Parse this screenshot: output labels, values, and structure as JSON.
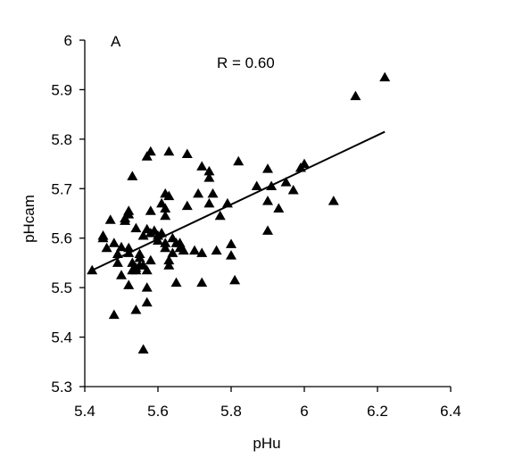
{
  "chart_data": {
    "type": "scatter",
    "panel_label": "A",
    "annotation": "R = 0.60",
    "xlabel": "pHu",
    "ylabel": "pHcam",
    "xlim": [
      5.4,
      6.4
    ],
    "ylim": [
      5.3,
      6.0
    ],
    "xticks": [
      "5.4",
      "5.6",
      "5.8",
      "6",
      "6.2",
      "6.4"
    ],
    "yticks": [
      "5.3",
      "5.4",
      "5.5",
      "5.6",
      "5.7",
      "5.8",
      "5.9",
      "6"
    ],
    "grid": false,
    "legend": "none",
    "marker": "triangle",
    "marker_color": "#000000",
    "trendline": {
      "x": [
        5.42,
        6.22
      ],
      "y": [
        5.535,
        5.815
      ]
    },
    "points": [
      [
        5.42,
        5.535
      ],
      [
        5.45,
        5.605
      ],
      [
        5.45,
        5.6
      ],
      [
        5.46,
        5.58
      ],
      [
        5.47,
        5.637
      ],
      [
        5.48,
        5.445
      ],
      [
        5.48,
        5.59
      ],
      [
        5.49,
        5.568
      ],
      [
        5.49,
        5.55
      ],
      [
        5.5,
        5.525
      ],
      [
        5.5,
        5.582
      ],
      [
        5.51,
        5.64
      ],
      [
        5.51,
        5.635
      ],
      [
        5.52,
        5.655
      ],
      [
        5.52,
        5.648
      ],
      [
        5.52,
        5.58
      ],
      [
        5.52,
        5.505
      ],
      [
        5.52,
        5.57
      ],
      [
        5.53,
        5.55
      ],
      [
        5.53,
        5.535
      ],
      [
        5.53,
        5.725
      ],
      [
        5.54,
        5.455
      ],
      [
        5.54,
        5.54
      ],
      [
        5.54,
        5.535
      ],
      [
        5.54,
        5.62
      ],
      [
        5.55,
        5.568
      ],
      [
        5.55,
        5.56
      ],
      [
        5.55,
        5.545
      ],
      [
        5.56,
        5.545
      ],
      [
        5.56,
        5.375
      ],
      [
        5.56,
        5.605
      ],
      [
        5.57,
        5.765
      ],
      [
        5.57,
        5.618
      ],
      [
        5.57,
        5.535
      ],
      [
        5.57,
        5.5
      ],
      [
        5.57,
        5.47
      ],
      [
        5.58,
        5.775
      ],
      [
        5.58,
        5.655
      ],
      [
        5.58,
        5.61
      ],
      [
        5.58,
        5.555
      ],
      [
        5.59,
        5.615
      ],
      [
        5.6,
        5.605
      ],
      [
        5.6,
        5.595
      ],
      [
        5.61,
        5.67
      ],
      [
        5.61,
        5.61
      ],
      [
        5.62,
        5.69
      ],
      [
        5.62,
        5.66
      ],
      [
        5.62,
        5.645
      ],
      [
        5.62,
        5.59
      ],
      [
        5.62,
        5.58
      ],
      [
        5.63,
        5.685
      ],
      [
        5.63,
        5.555
      ],
      [
        5.63,
        5.545
      ],
      [
        5.64,
        5.6
      ],
      [
        5.64,
        5.57
      ],
      [
        5.65,
        5.59
      ],
      [
        5.65,
        5.51
      ],
      [
        5.66,
        5.59
      ],
      [
        5.66,
        5.58
      ],
      [
        5.67,
        5.575
      ],
      [
        5.63,
        5.775
      ],
      [
        5.68,
        5.77
      ],
      [
        5.68,
        5.665
      ],
      [
        5.7,
        5.575
      ],
      [
        5.71,
        5.69
      ],
      [
        5.72,
        5.745
      ],
      [
        5.72,
        5.57
      ],
      [
        5.72,
        5.51
      ],
      [
        5.74,
        5.735
      ],
      [
        5.74,
        5.722
      ],
      [
        5.74,
        5.67
      ],
      [
        5.75,
        5.69
      ],
      [
        5.76,
        5.575
      ],
      [
        5.77,
        5.645
      ],
      [
        5.79,
        5.67
      ],
      [
        5.8,
        5.588
      ],
      [
        5.8,
        5.565
      ],
      [
        5.81,
        5.515
      ],
      [
        5.82,
        5.755
      ],
      [
        5.87,
        5.705
      ],
      [
        5.9,
        5.74
      ],
      [
        5.9,
        5.675
      ],
      [
        5.9,
        5.615
      ],
      [
        5.91,
        5.705
      ],
      [
        5.93,
        5.66
      ],
      [
        5.95,
        5.713
      ],
      [
        5.97,
        5.697
      ],
      [
        5.99,
        5.742
      ],
      [
        6.0,
        5.75
      ],
      [
        6.08,
        5.675
      ],
      [
        6.14,
        5.887
      ],
      [
        6.22,
        5.925
      ]
    ]
  }
}
